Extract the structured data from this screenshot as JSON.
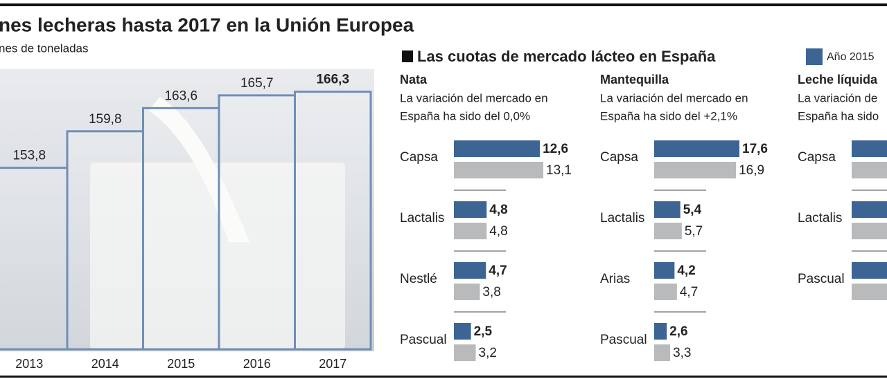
{
  "header": {
    "title": "Las cuotas de mercado lácteo en España"
  },
  "chart_data": [
    {
      "type": "column",
      "title": "nes lecheras hasta 2017 en la Unión Europea",
      "subtitle": "nes de toneladas",
      "categories": [
        "2013",
        "2014",
        "2015",
        "2016",
        "2017"
      ],
      "values": [
        153.8,
        159.8,
        163.6,
        165.7,
        166.3
      ],
      "value_labels": [
        "153,8",
        "159,8",
        "163,6",
        "165,7",
        "166,3"
      ],
      "color": "#6f8fb8",
      "ylim": [
        124,
        170
      ]
    },
    {
      "type": "hbar",
      "title": "Nata",
      "subtitle": [
        "La variación del mercado en",
        "España ha sido del 0,0%"
      ],
      "categories": [
        "Capsa",
        "Lactalis",
        "Nestlé",
        "Pascual"
      ],
      "xlim": [
        0,
        13.2
      ],
      "series": [
        {
          "name": "Año 2015",
          "color": "#3d6594",
          "values": [
            12.6,
            4.8,
            4.7,
            2.5
          ],
          "value_labels": [
            "12,6",
            "4,8",
            "4,7",
            "2,5"
          ]
        },
        {
          "color": "#b8babb",
          "values": [
            13.1,
            4.8,
            3.8,
            3.2
          ],
          "value_labels": [
            "13,1",
            "4,8",
            "3,8",
            "3,2"
          ]
        }
      ]
    },
    {
      "type": "hbar",
      "title": "Mantequilla",
      "subtitle": [
        "La variación del mercado en",
        "España ha sido del +2,1%"
      ],
      "categories": [
        "Capsa",
        "Lactalis",
        "Arias",
        "Pascual"
      ],
      "xlim": [
        0,
        18.6
      ],
      "series": [
        {
          "color": "#3d6594",
          "values": [
            17.6,
            5.4,
            4.2,
            2.6
          ],
          "value_labels": [
            "17,6",
            "5,4",
            "4,2",
            "2,6"
          ]
        },
        {
          "color": "#b8babb",
          "values": [
            16.9,
            5.7,
            4.7,
            3.3
          ],
          "value_labels": [
            "16,9",
            "5,7",
            "4,7",
            "3,3"
          ]
        }
      ]
    },
    {
      "type": "hbar",
      "title": "Leche líquida",
      "subtitle": [
        "La variación de",
        "España ha sido"
      ],
      "categories": [
        "Capsa",
        "Lactalis",
        "Pascual"
      ]
    }
  ]
}
